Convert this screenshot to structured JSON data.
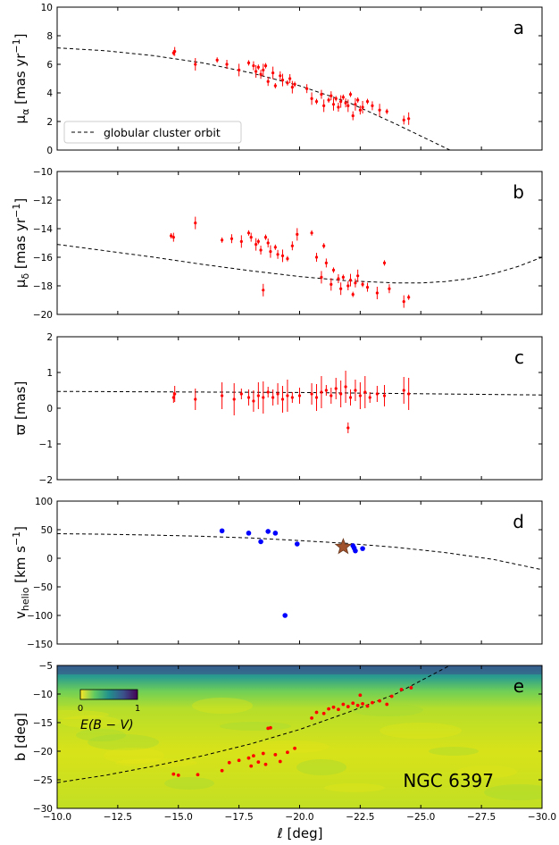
{
  "figure": {
    "xlabel": "ℓ [deg]",
    "x_ticks": [
      -10.0,
      -12.5,
      -15.0,
      -17.5,
      -20.0,
      -22.5,
      -25.0,
      -27.5,
      -30.0
    ],
    "x_tick_labels": [
      "−10.0",
      "−12.5",
      "−15.0",
      "−17.5",
      "−20.0",
      "−22.5",
      "−25.0",
      "−27.5",
      "−30.0"
    ],
    "xlim": [
      -10,
      -30
    ]
  },
  "chart_data": [
    {
      "panel": "a",
      "type": "scatter",
      "ylabel": "μ_α [mas yr⁻¹]",
      "ylim": [
        0,
        10
      ],
      "yticks": [
        0,
        2,
        4,
        6,
        8,
        10
      ],
      "legend": "globular cluster orbit",
      "legend_position": "lower-left",
      "points": [
        [
          -14.8,
          6.8
        ],
        [
          -14.85,
          6.9
        ],
        [
          -15.7,
          6.0
        ],
        [
          -16.6,
          6.3
        ],
        [
          -17.0,
          6.0
        ],
        [
          -17.5,
          5.6
        ],
        [
          -17.9,
          6.1
        ],
        [
          -18.1,
          5.9
        ],
        [
          -18.2,
          5.5
        ],
        [
          -18.3,
          5.8
        ],
        [
          -18.4,
          5.3
        ],
        [
          -18.5,
          5.6
        ],
        [
          -18.6,
          5.9
        ],
        [
          -18.7,
          4.8
        ],
        [
          -18.9,
          5.4
        ],
        [
          -19.0,
          4.5
        ],
        [
          -19.2,
          5.2
        ],
        [
          -19.3,
          4.9
        ],
        [
          -19.5,
          4.7
        ],
        [
          -19.6,
          5.0
        ],
        [
          -19.7,
          4.4
        ],
        [
          -19.8,
          4.6
        ],
        [
          -20.3,
          4.3
        ],
        [
          -20.5,
          3.6
        ],
        [
          -20.7,
          3.4
        ],
        [
          -20.9,
          3.9
        ],
        [
          -21.0,
          3.1
        ],
        [
          -21.2,
          3.5
        ],
        [
          -21.3,
          3.8
        ],
        [
          -21.4,
          3.2
        ],
        [
          -21.5,
          3.6
        ],
        [
          -21.6,
          3.0
        ],
        [
          -21.7,
          3.4
        ],
        [
          -21.8,
          3.7
        ],
        [
          -21.9,
          3.3
        ],
        [
          -22.0,
          3.1
        ],
        [
          -22.1,
          3.9
        ],
        [
          -22.2,
          2.4
        ],
        [
          -22.3,
          3.2
        ],
        [
          -22.4,
          3.5
        ],
        [
          -22.5,
          2.8
        ],
        [
          -22.6,
          3.0
        ],
        [
          -22.8,
          3.4
        ],
        [
          -23.0,
          3.1
        ],
        [
          -23.3,
          2.8
        ],
        [
          -23.6,
          2.7
        ],
        [
          -24.3,
          2.1
        ],
        [
          -24.5,
          2.2
        ]
      ],
      "orbit": [
        [
          -10,
          7.15
        ],
        [
          -12,
          6.95
        ],
        [
          -14,
          6.6
        ],
        [
          -16,
          6.1
        ],
        [
          -18,
          5.4
        ],
        [
          -20,
          4.5
        ],
        [
          -22,
          3.35
        ],
        [
          -24,
          1.8
        ],
        [
          -26.2,
          0
        ]
      ],
      "label": "a"
    },
    {
      "panel": "b",
      "type": "scatter",
      "ylabel": "μ_δ [mas yr⁻¹]",
      "ylim": [
        -20,
        -10
      ],
      "yticks": [
        -20,
        -18,
        -16,
        -14,
        -12,
        -10
      ],
      "points": [
        [
          -14.7,
          -14.5
        ],
        [
          -14.8,
          -14.6
        ],
        [
          -15.7,
          -13.6
        ],
        [
          -16.8,
          -14.8
        ],
        [
          -17.2,
          -14.7
        ],
        [
          -17.6,
          -14.9
        ],
        [
          -17.9,
          -14.3
        ],
        [
          -18.0,
          -14.6
        ],
        [
          -18.2,
          -15.1
        ],
        [
          -18.3,
          -14.9
        ],
        [
          -18.4,
          -15.5
        ],
        [
          -18.5,
          -18.3
        ],
        [
          -18.6,
          -14.6
        ],
        [
          -18.7,
          -15.0
        ],
        [
          -18.8,
          -15.6
        ],
        [
          -19.0,
          -15.3
        ],
        [
          -19.1,
          -15.8
        ],
        [
          -19.3,
          -15.9
        ],
        [
          -19.5,
          -16.1
        ],
        [
          -19.7,
          -15.2
        ],
        [
          -19.9,
          -14.4
        ],
        [
          -20.5,
          -14.3
        ],
        [
          -20.7,
          -16.0
        ],
        [
          -20.9,
          -17.4
        ],
        [
          -21.0,
          -15.2
        ],
        [
          -21.1,
          -16.4
        ],
        [
          -21.3,
          -17.9
        ],
        [
          -21.4,
          -16.9
        ],
        [
          -21.6,
          -17.5
        ],
        [
          -21.7,
          -18.2
        ],
        [
          -21.8,
          -17.4
        ],
        [
          -22.0,
          -18.0
        ],
        [
          -22.1,
          -17.6
        ],
        [
          -22.2,
          -18.6
        ],
        [
          -22.3,
          -17.8
        ],
        [
          -22.4,
          -17.3
        ],
        [
          -22.6,
          -17.9
        ],
        [
          -22.8,
          -18.1
        ],
        [
          -23.2,
          -18.5
        ],
        [
          -23.5,
          -16.4
        ],
        [
          -23.7,
          -18.2
        ],
        [
          -24.3,
          -19.1
        ],
        [
          -24.5,
          -18.8
        ]
      ],
      "orbit": [
        [
          -10,
          -15.1
        ],
        [
          -12,
          -15.55
        ],
        [
          -14,
          -16.0
        ],
        [
          -16,
          -16.5
        ],
        [
          -18,
          -16.95
        ],
        [
          -20,
          -17.35
        ],
        [
          -22,
          -17.65
        ],
        [
          -24,
          -17.8
        ],
        [
          -25,
          -17.8
        ],
        [
          -26,
          -17.7
        ],
        [
          -27,
          -17.5
        ],
        [
          -28,
          -17.15
        ],
        [
          -29,
          -16.65
        ],
        [
          -30,
          -16.0
        ]
      ],
      "label": "b"
    },
    {
      "panel": "c",
      "type": "scatter",
      "ylabel": "ϖ [mas]",
      "ylim": [
        -2,
        2
      ],
      "yticks": [
        -2,
        -1,
        0,
        1,
        2
      ],
      "points": [
        [
          -14.8,
          0.3
        ],
        [
          -14.85,
          0.4
        ],
        [
          -15.7,
          0.25
        ],
        [
          -16.8,
          0.35
        ],
        [
          -17.3,
          0.25
        ],
        [
          -17.6,
          0.4
        ],
        [
          -17.9,
          0.3
        ],
        [
          -18.1,
          0.2
        ],
        [
          -18.3,
          0.35
        ],
        [
          -18.5,
          0.3
        ],
        [
          -18.7,
          0.45
        ],
        [
          -18.9,
          0.3
        ],
        [
          -19.1,
          0.4
        ],
        [
          -19.3,
          0.25
        ],
        [
          -19.5,
          0.35
        ],
        [
          -19.7,
          0.3
        ],
        [
          -20.0,
          0.35
        ],
        [
          -20.5,
          0.4
        ],
        [
          -20.7,
          0.3
        ],
        [
          -20.9,
          0.45
        ],
        [
          -21.1,
          0.5
        ],
        [
          -21.3,
          0.35
        ],
        [
          -21.5,
          0.55
        ],
        [
          -21.7,
          0.4
        ],
        [
          -21.9,
          0.6
        ],
        [
          -22.0,
          -0.55
        ],
        [
          -22.1,
          0.3
        ],
        [
          -22.3,
          0.5
        ],
        [
          -22.5,
          0.35
        ],
        [
          -22.7,
          0.45
        ],
        [
          -22.9,
          0.3
        ],
        [
          -23.2,
          0.4
        ],
        [
          -23.5,
          0.35
        ],
        [
          -24.3,
          0.5
        ],
        [
          -24.5,
          0.4
        ]
      ],
      "orbit": [
        [
          -10,
          0.47
        ],
        [
          -20,
          0.44
        ],
        [
          -30,
          0.37
        ]
      ],
      "label": "c"
    },
    {
      "panel": "d",
      "type": "scatter",
      "ylabel": "v_helio [km s⁻¹]",
      "ylim": [
        -150,
        100
      ],
      "yticks": [
        -150,
        -100,
        -50,
        0,
        50,
        100
      ],
      "points": [
        [
          -16.8,
          48
        ],
        [
          -17.9,
          44
        ],
        [
          -18.4,
          29
        ],
        [
          -18.7,
          47
        ],
        [
          -19.0,
          44
        ],
        [
          -19.4,
          -100
        ],
        [
          -19.9,
          25
        ],
        [
          -22.2,
          22
        ],
        [
          -22.25,
          18
        ],
        [
          -22.3,
          13
        ],
        [
          -22.6,
          17
        ]
      ],
      "cluster": [
        -21.8,
        20
      ],
      "orbit": [
        [
          -10,
          43
        ],
        [
          -12,
          42
        ],
        [
          -14,
          40.5
        ],
        [
          -16,
          38.5
        ],
        [
          -18,
          35.5
        ],
        [
          -20,
          31
        ],
        [
          -22,
          26
        ],
        [
          -24,
          19
        ],
        [
          -26,
          10
        ],
        [
          -28,
          -2
        ],
        [
          -30,
          -20
        ]
      ],
      "label": "d"
    },
    {
      "panel": "e",
      "type": "heatmap",
      "ylabel": "b [deg]",
      "ylim": [
        -30,
        -5
      ],
      "yticks": [
        -30,
        -25,
        -20,
        -15,
        -10,
        -5
      ],
      "colorbar": {
        "label": "E(B − V)",
        "min_label": "0",
        "max_label": "1"
      },
      "annotation": "NGC 6397",
      "points": [
        [
          -14.8,
          -24.0
        ],
        [
          -15.0,
          -24.2
        ],
        [
          -15.8,
          -24.1
        ],
        [
          -16.8,
          -23.4
        ],
        [
          -17.1,
          -22.0
        ],
        [
          -17.5,
          -21.6
        ],
        [
          -17.9,
          -21.2
        ],
        [
          -18.0,
          -22.6
        ],
        [
          -18.1,
          -20.8
        ],
        [
          -18.3,
          -21.9
        ],
        [
          -18.5,
          -20.4
        ],
        [
          -18.6,
          -22.3
        ],
        [
          -18.7,
          -16.0
        ],
        [
          -18.8,
          -15.9
        ],
        [
          -19.0,
          -20.6
        ],
        [
          -19.2,
          -21.8
        ],
        [
          -19.5,
          -20.2
        ],
        [
          -19.8,
          -19.5
        ],
        [
          -20.5,
          -14.2
        ],
        [
          -20.7,
          -13.2
        ],
        [
          -21.0,
          -13.4
        ],
        [
          -21.2,
          -12.6
        ],
        [
          -21.4,
          -12.3
        ],
        [
          -21.6,
          -12.7
        ],
        [
          -21.8,
          -11.8
        ],
        [
          -22.0,
          -12.2
        ],
        [
          -22.2,
          -11.6
        ],
        [
          -22.4,
          -12.0
        ],
        [
          -22.5,
          -10.2
        ],
        [
          -22.6,
          -11.7
        ],
        [
          -22.8,
          -12.1
        ],
        [
          -23.0,
          -11.5
        ],
        [
          -23.3,
          -11.2
        ],
        [
          -23.6,
          -11.8
        ],
        [
          -23.8,
          -10.4
        ],
        [
          -24.2,
          -9.2
        ],
        [
          -24.6,
          -8.9
        ]
      ],
      "orbit": [
        [
          -10,
          -25.5
        ],
        [
          -12,
          -24.2
        ],
        [
          -14,
          -22.6
        ],
        [
          -16,
          -20.8
        ],
        [
          -18,
          -18.7
        ],
        [
          -20,
          -16.2
        ],
        [
          -22,
          -13.2
        ],
        [
          -24,
          -9.9
        ],
        [
          -26.2,
          -5
        ]
      ],
      "label": "e"
    }
  ],
  "colors": {
    "points": "#ff0000",
    "rv_points": "#0000ff",
    "star": "#a0522d",
    "orbit": "#000000"
  }
}
